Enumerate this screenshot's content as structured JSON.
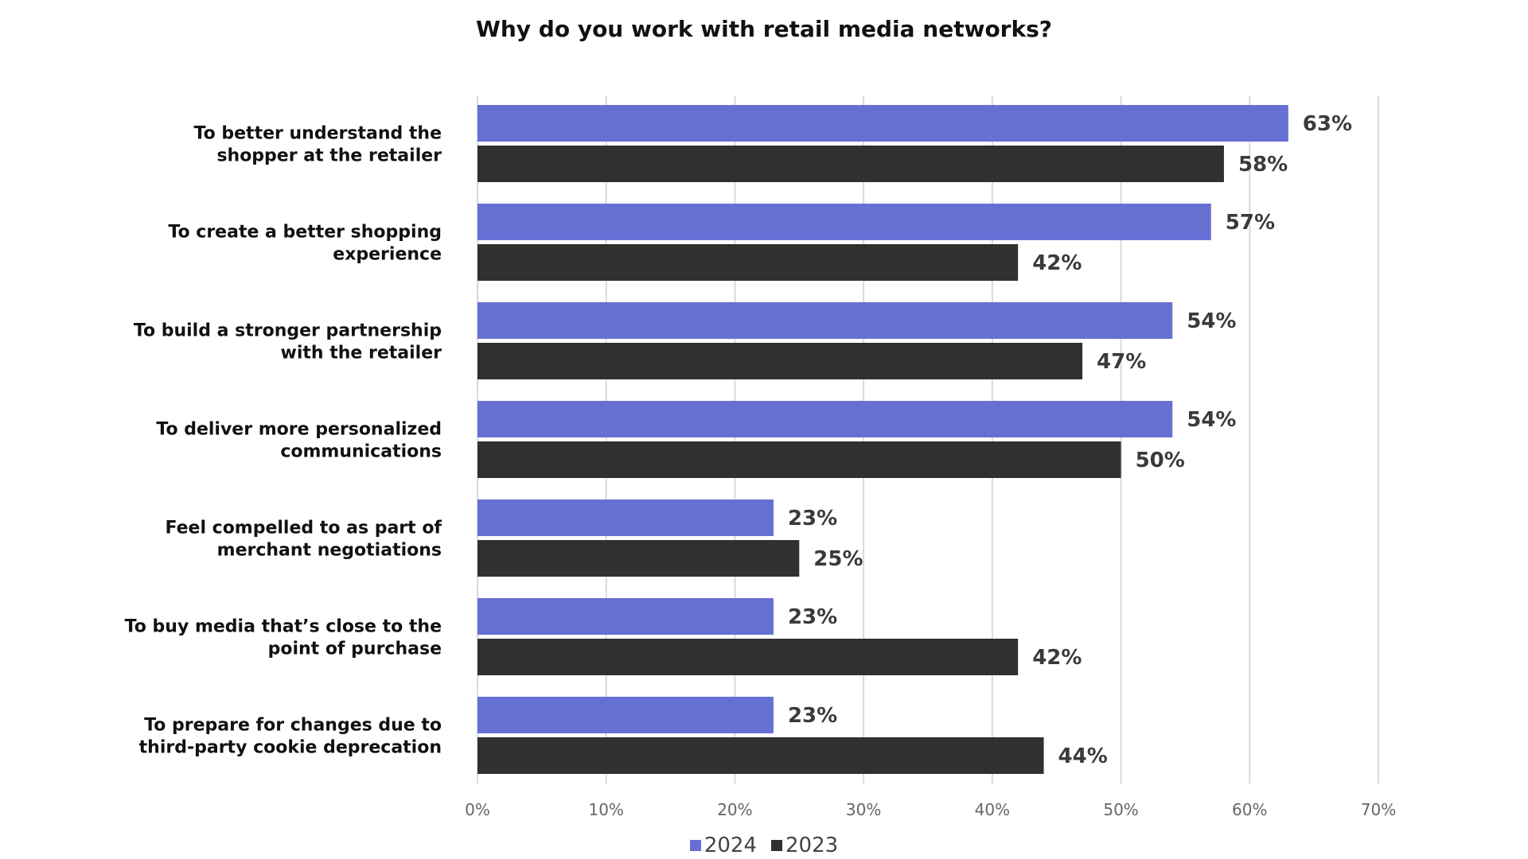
{
  "chart_data": {
    "type": "bar",
    "orientation": "horizontal",
    "title": "Why do you work with retail media networks?",
    "categories": [
      [
        "To better understand the",
        "shopper at the retailer"
      ],
      [
        "To create a better shopping",
        "experience"
      ],
      [
        "To build a stronger partnership",
        "with the retailer"
      ],
      [
        "To deliver more personalized",
        "communications"
      ],
      [
        "Feel compelled to as part of",
        "merchant negotiations"
      ],
      [
        "To buy media that’s close to the",
        "point of purchase"
      ],
      [
        "To prepare for changes due to",
        "third-party cookie deprecation"
      ]
    ],
    "series": [
      {
        "name": "2024",
        "color": "#6670d3",
        "values": [
          63,
          57,
          54,
          54,
          23,
          23,
          23
        ],
        "labels": [
          "63%",
          "57%",
          "54%",
          "54%",
          "23%",
          "23%",
          "23%"
        ]
      },
      {
        "name": "2023",
        "color": "#303030",
        "values": [
          58,
          42,
          47,
          50,
          25,
          42,
          44
        ],
        "labels": [
          "58%",
          "42%",
          "47%",
          "50%",
          "25%",
          "42%",
          "44%"
        ]
      }
    ],
    "xlim": [
      0,
      70
    ],
    "xticks": [
      "0%",
      "10%",
      "20%",
      "30%",
      "40%",
      "50%",
      "60%",
      "70%"
    ],
    "grid": true,
    "gridColor": "#d9d9d9",
    "legendPlacement": "bottom-center"
  }
}
